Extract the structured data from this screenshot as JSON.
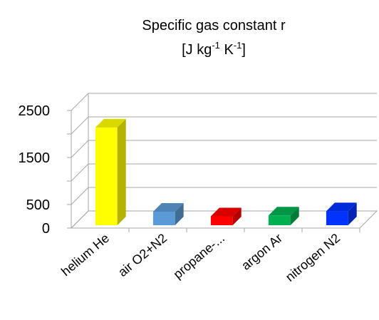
{
  "chart_data": {
    "type": "bar3d",
    "title": "Specific gas constant r",
    "units": [
      "[J kg",
      "-1",
      " K",
      "-1",
      "]"
    ],
    "categories": [
      "helium He",
      "air O2+N2",
      "propane-...",
      "argon Ar",
      "nitrogen N2"
    ],
    "values": [
      2077,
      287,
      189,
      208,
      297
    ],
    "colors": [
      "#ffff00",
      "#5b9bd5",
      "#ff0000",
      "#00b050",
      "#0033ff"
    ],
    "ylim": [
      0,
      2500
    ],
    "yticks": [
      0,
      500,
      1500,
      2500
    ],
    "minor_yticks": [
      1000,
      2000
    ],
    "grid": true
  }
}
